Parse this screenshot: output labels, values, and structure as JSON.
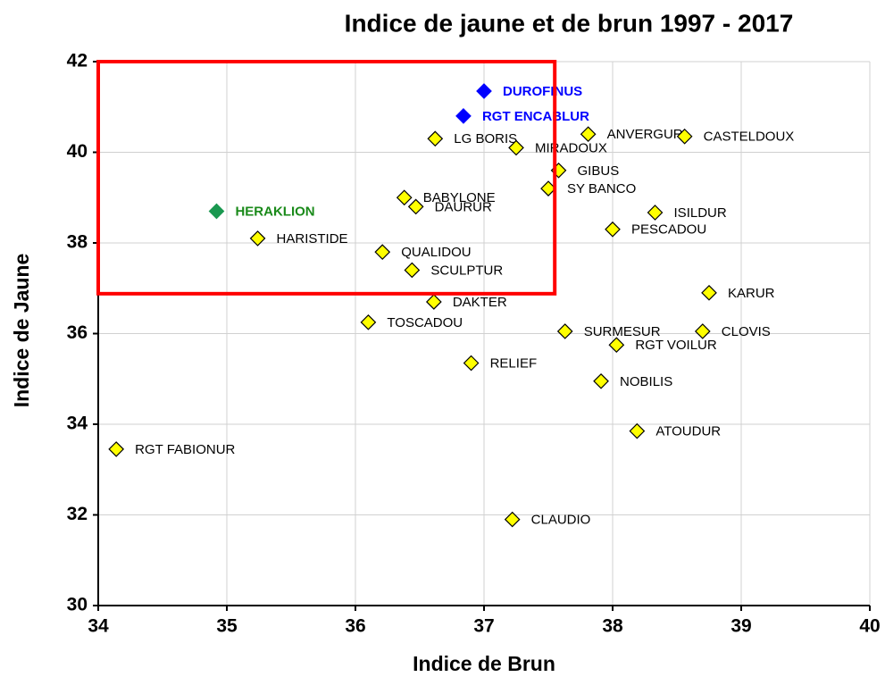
{
  "chart_data": {
    "type": "scatter",
    "title": "Indice de jaune et de brun 1997 - 2017",
    "x_label": "Indice de Brun",
    "y_label": "Indice de Jaune",
    "xlim": [
      34,
      40
    ],
    "ylim": [
      30,
      42
    ],
    "xticks": [
      34,
      35,
      36,
      37,
      38,
      39,
      40
    ],
    "yticks": [
      30,
      32,
      34,
      36,
      38,
      40,
      42
    ],
    "grid": true,
    "highlight": {
      "xlim": [
        34,
        37.55
      ],
      "ylim": [
        36.88,
        42
      ],
      "color": "#ff0000"
    },
    "series": [
      {
        "color": "#ffff00",
        "label_color": "#000000",
        "labels": [
          "LG BORIS",
          "MIRADOUX",
          "ANVERGUR",
          "CASTELDOUX",
          "GIBUS",
          "SY BANCO",
          "BABYLONE",
          "DAURUR",
          "ISILDUR",
          "PESCADOU",
          "HARISTIDE",
          "QUALIDOU",
          "SCULPTUR",
          "DAKTER",
          "KARUR",
          "TOSCADOU",
          "SURMESUR",
          "CLOVIS",
          "RGT VOILUR",
          "RELIEF",
          "NOBILIS",
          "ATOUDUR",
          "RGT FABIONUR",
          "CLAUDIO"
        ],
        "x": [
          36.62,
          37.25,
          37.81,
          38.56,
          37.58,
          37.5,
          36.38,
          36.47,
          38.33,
          38.0,
          35.24,
          36.21,
          36.44,
          36.61,
          38.75,
          36.1,
          37.63,
          38.7,
          38.03,
          36.9,
          37.91,
          38.19,
          34.14,
          37.22
        ],
        "values": [
          40.3,
          40.1,
          40.4,
          40.35,
          39.6,
          39.2,
          39.0,
          38.8,
          38.67,
          38.3,
          38.1,
          37.8,
          37.4,
          36.7,
          36.9,
          36.25,
          36.05,
          36.05,
          35.75,
          35.35,
          34.95,
          33.85,
          33.45,
          31.9
        ]
      },
      {
        "color": "#0000ff",
        "label_color": "#0000ff",
        "labels": [
          "DUROFINUS",
          "RGT ENCABLUR"
        ],
        "x": [
          37.0,
          36.84
        ],
        "values": [
          41.35,
          40.8
        ]
      },
      {
        "color": "#1a9850",
        "label_color": "#1a8a1a",
        "labels": [
          "HERAKLION"
        ],
        "x": [
          34.92
        ],
        "values": [
          38.7
        ]
      }
    ]
  }
}
